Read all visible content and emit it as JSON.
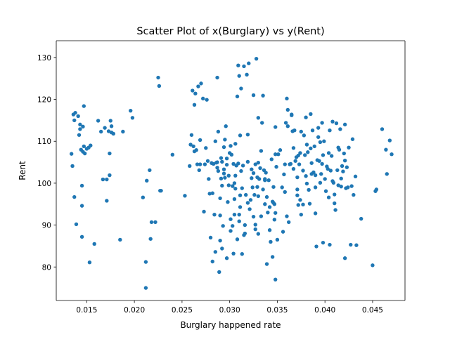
{
  "chart_data": {
    "type": "scatter",
    "title": "Scatter Plot of x(Burglary) vs y(Rent)",
    "xlabel": "Burglary happened rate",
    "ylabel": "Rent",
    "xlim": [
      0.0118,
      0.0484
    ],
    "ylim": [
      72,
      134
    ],
    "xticks": [
      0.015,
      0.02,
      0.025,
      0.03,
      0.035,
      0.04,
      0.045
    ],
    "xtick_labels": [
      "0.015",
      "0.020",
      "0.025",
      "0.030",
      "0.035",
      "0.040",
      "0.045"
    ],
    "yticks": [
      80,
      90,
      100,
      110,
      120,
      130
    ],
    "ytick_labels": [
      "80",
      "90",
      "100",
      "110",
      "120",
      "130"
    ],
    "grid": false,
    "legend": "none",
    "marker_color": "#1f77b4",
    "points": [
      [
        0.0134,
        107.0
      ],
      [
        0.0135,
        104.1
      ],
      [
        0.0136,
        116.4
      ],
      [
        0.0137,
        115.0
      ],
      [
        0.0137,
        96.7
      ],
      [
        0.0138,
        116.8
      ],
      [
        0.0139,
        90.2
      ],
      [
        0.0141,
        116.0
      ],
      [
        0.0142,
        111.5
      ],
      [
        0.0143,
        114.0
      ],
      [
        0.0143,
        112.9
      ],
      [
        0.0144,
        108.0
      ],
      [
        0.0145,
        99.4
      ],
      [
        0.0145,
        94.6
      ],
      [
        0.0145,
        87.2
      ],
      [
        0.0146,
        113.5
      ],
      [
        0.0146,
        107.5
      ],
      [
        0.0147,
        118.4
      ],
      [
        0.0147,
        108.8
      ],
      [
        0.0148,
        107.1
      ],
      [
        0.015,
        108.2
      ],
      [
        0.0152,
        108.5
      ],
      [
        0.0153,
        81.1
      ],
      [
        0.0154,
        109.0
      ],
      [
        0.0158,
        85.5
      ],
      [
        0.0162,
        114.9
      ],
      [
        0.0165,
        112.3
      ],
      [
        0.0167,
        100.9
      ],
      [
        0.0169,
        113.2
      ],
      [
        0.0171,
        100.9
      ],
      [
        0.0171,
        95.8
      ],
      [
        0.0173,
        112.4
      ],
      [
        0.0174,
        107.1
      ],
      [
        0.0174,
        101.9
      ],
      [
        0.0175,
        114.9
      ],
      [
        0.0176,
        113.6
      ],
      [
        0.0176,
        112.1
      ],
      [
        0.0178,
        111.8
      ],
      [
        0.0185,
        86.5
      ],
      [
        0.0188,
        112.3
      ],
      [
        0.0196,
        117.3
      ],
      [
        0.0198,
        115.6
      ],
      [
        0.0209,
        96.6
      ],
      [
        0.0212,
        81.2
      ],
      [
        0.0212,
        75.0
      ],
      [
        0.0213,
        100.6
      ],
      [
        0.0216,
        103.1
      ],
      [
        0.0217,
        86.7
      ],
      [
        0.0218,
        90.7
      ],
      [
        0.0222,
        90.7
      ],
      [
        0.0225,
        125.2
      ],
      [
        0.0226,
        123.2
      ],
      [
        0.0227,
        98.2
      ],
      [
        0.0228,
        98.2
      ],
      [
        0.024,
        106.8
      ],
      [
        0.0253,
        97.0
      ],
      [
        0.0258,
        104.1
      ],
      [
        0.0259,
        109.2
      ],
      [
        0.026,
        111.5
      ],
      [
        0.0261,
        122.1
      ],
      [
        0.0262,
        108.8
      ],
      [
        0.0263,
        118.7
      ],
      [
        0.0263,
        107.6
      ],
      [
        0.0264,
        121.4
      ],
      [
        0.0265,
        107.9
      ],
      [
        0.0266,
        104.5
      ],
      [
        0.0267,
        123.1
      ],
      [
        0.0268,
        103.1
      ],
      [
        0.0269,
        110.3
      ],
      [
        0.0269,
        104.5
      ],
      [
        0.027,
        123.8
      ],
      [
        0.0272,
        120.2
      ],
      [
        0.0273,
        93.2
      ],
      [
        0.0274,
        104.5
      ],
      [
        0.0275,
        108.4
      ],
      [
        0.0276,
        119.9
      ],
      [
        0.0277,
        105.3
      ],
      [
        0.0278,
        101.0
      ],
      [
        0.0279,
        97.5
      ],
      [
        0.028,
        87.0
      ],
      [
        0.0281,
        104.8
      ],
      [
        0.0282,
        97.6
      ],
      [
        0.0282,
        81.3
      ],
      [
        0.0283,
        104.6
      ],
      [
        0.0284,
        92.5
      ],
      [
        0.0285,
        110.0
      ],
      [
        0.0285,
        83.6
      ],
      [
        0.0286,
        104.9
      ],
      [
        0.0287,
        105.0
      ],
      [
        0.0287,
        125.2
      ],
      [
        0.0287,
        103.7
      ],
      [
        0.0288,
        112.3
      ],
      [
        0.0288,
        102.9
      ],
      [
        0.0289,
        78.8
      ],
      [
        0.029,
        96.4
      ],
      [
        0.029,
        86.3
      ],
      [
        0.029,
        92.3
      ],
      [
        0.0291,
        101.1
      ],
      [
        0.0291,
        106.0
      ],
      [
        0.0292,
        99.4
      ],
      [
        0.0292,
        105.1
      ],
      [
        0.0292,
        84.4
      ],
      [
        0.0293,
        89.8
      ],
      [
        0.0294,
        103.3
      ],
      [
        0.0294,
        102.3
      ],
      [
        0.0294,
        108.6
      ],
      [
        0.0295,
        110.4
      ],
      [
        0.0295,
        101.3
      ],
      [
        0.0296,
        113.6
      ],
      [
        0.0297,
        82.1
      ],
      [
        0.0297,
        105.9
      ],
      [
        0.0297,
        104.4
      ],
      [
        0.0298,
        95.5
      ],
      [
        0.0299,
        101.8
      ],
      [
        0.0299,
        99.5
      ],
      [
        0.03,
        107.2
      ],
      [
        0.0301,
        91.4
      ],
      [
        0.0301,
        88.6
      ],
      [
        0.0301,
        108.9
      ],
      [
        0.0302,
        106.8
      ],
      [
        0.0303,
        89.8
      ],
      [
        0.0303,
        99.3
      ],
      [
        0.0304,
        104.6
      ],
      [
        0.0304,
        83.2
      ],
      [
        0.0305,
        92.5
      ],
      [
        0.0305,
        100.0
      ],
      [
        0.0305,
        96.2
      ],
      [
        0.0306,
        101.8
      ],
      [
        0.0306,
        109.4
      ],
      [
        0.0306,
        98.7
      ],
      [
        0.0307,
        104.2
      ],
      [
        0.0308,
        120.7
      ],
      [
        0.0308,
        86.6
      ],
      [
        0.0309,
        128.1
      ],
      [
        0.0309,
        104.7
      ],
      [
        0.031,
        125.6
      ],
      [
        0.031,
        92.5
      ],
      [
        0.031,
        90.9
      ],
      [
        0.0311,
        111.4
      ],
      [
        0.0311,
        97.1
      ],
      [
        0.0311,
        94.3
      ],
      [
        0.0312,
        122.6
      ],
      [
        0.0312,
        102.9
      ],
      [
        0.0313,
        83.1
      ],
      [
        0.0313,
        98.8
      ],
      [
        0.0314,
        104.2
      ],
      [
        0.0315,
        87.6
      ],
      [
        0.0315,
        127.9
      ],
      [
        0.0316,
        90.0
      ],
      [
        0.0316,
        88.0
      ],
      [
        0.0317,
        97.2
      ],
      [
        0.0318,
        125.9
      ],
      [
        0.0319,
        111.6
      ],
      [
        0.0319,
        105.1
      ],
      [
        0.0319,
        95.3
      ],
      [
        0.032,
        128.6
      ],
      [
        0.0321,
        93.8
      ],
      [
        0.0322,
        96.0
      ],
      [
        0.0323,
        103.3
      ],
      [
        0.0323,
        101.2
      ],
      [
        0.0324,
        99.0
      ],
      [
        0.0325,
        121.0
      ],
      [
        0.0325,
        102.4
      ],
      [
        0.0325,
        92.0
      ],
      [
        0.0326,
        97.2
      ],
      [
        0.0327,
        104.5
      ],
      [
        0.0327,
        90.1
      ],
      [
        0.0327,
        89.0
      ],
      [
        0.0328,
        129.7
      ],
      [
        0.0329,
        101.4
      ],
      [
        0.0329,
        99.1
      ],
      [
        0.033,
        87.9
      ],
      [
        0.033,
        104.9
      ],
      [
        0.033,
        115.6
      ],
      [
        0.033,
        96.9
      ],
      [
        0.0331,
        101.0
      ],
      [
        0.0332,
        103.6
      ],
      [
        0.0333,
        92.1
      ],
      [
        0.0333,
        107.7
      ],
      [
        0.0334,
        114.4
      ],
      [
        0.0335,
        120.9
      ],
      [
        0.0335,
        98.5
      ],
      [
        0.0336,
        103.1
      ],
      [
        0.0337,
        100.7
      ],
      [
        0.0337,
        101.0
      ],
      [
        0.0337,
        95.0
      ],
      [
        0.0338,
        102.5
      ],
      [
        0.0339,
        96.7
      ],
      [
        0.0339,
        80.7
      ],
      [
        0.034,
        93.0
      ],
      [
        0.0341,
        100.7
      ],
      [
        0.0342,
        94.3
      ],
      [
        0.0342,
        88.8
      ],
      [
        0.0343,
        86.0
      ],
      [
        0.0344,
        105.7
      ],
      [
        0.0345,
        82.4
      ],
      [
        0.0345,
        95.6
      ],
      [
        0.0346,
        99.1
      ],
      [
        0.0346,
        95.3
      ],
      [
        0.0347,
        91.3
      ],
      [
        0.0347,
        95.0
      ],
      [
        0.0348,
        92.9
      ],
      [
        0.0348,
        77.0
      ],
      [
        0.0348,
        113.4
      ],
      [
        0.0348,
        106.9
      ],
      [
        0.0349,
        103.9
      ],
      [
        0.035,
        86.5
      ],
      [
        0.0351,
        106.9
      ],
      [
        0.0353,
        107.9
      ],
      [
        0.0355,
        99.0
      ],
      [
        0.0356,
        88.4
      ],
      [
        0.0357,
        102.1
      ],
      [
        0.0358,
        97.9
      ],
      [
        0.0358,
        104.5
      ],
      [
        0.0359,
        114.4
      ],
      [
        0.036,
        92.1
      ],
      [
        0.036,
        120.2
      ],
      [
        0.0361,
        113.6
      ],
      [
        0.0361,
        117.5
      ],
      [
        0.0362,
        90.7
      ],
      [
        0.0363,
        104.5
      ],
      [
        0.0364,
        104.6
      ],
      [
        0.0365,
        116.2
      ],
      [
        0.0365,
        116.4
      ],
      [
        0.0366,
        112.4
      ],
      [
        0.0367,
        108.4
      ],
      [
        0.0367,
        103.4
      ],
      [
        0.0368,
        112.6
      ],
      [
        0.0369,
        105.3
      ],
      [
        0.037,
        106.2
      ],
      [
        0.0371,
        97.1
      ],
      [
        0.0371,
        101.4
      ],
      [
        0.0371,
        98.5
      ],
      [
        0.0372,
        106.6
      ],
      [
        0.0372,
        94.8
      ],
      [
        0.0373,
        104.5
      ],
      [
        0.0374,
        96.0
      ],
      [
        0.0374,
        107.2
      ],
      [
        0.0375,
        112.3
      ],
      [
        0.0375,
        92.5
      ],
      [
        0.0377,
        94.9
      ],
      [
        0.0377,
        103.0
      ],
      [
        0.0378,
        111.4
      ],
      [
        0.0379,
        106.7
      ],
      [
        0.038,
        101.7
      ],
      [
        0.038,
        115.7
      ],
      [
        0.0381,
        109.2
      ],
      [
        0.0381,
        99.9
      ],
      [
        0.0382,
        107.4
      ],
      [
        0.0383,
        98.4
      ],
      [
        0.0384,
        95.1
      ],
      [
        0.0385,
        108.3
      ],
      [
        0.0385,
        116.5
      ],
      [
        0.0386,
        104.8
      ],
      [
        0.0386,
        102.2
      ],
      [
        0.0387,
        112.6
      ],
      [
        0.0388,
        102.6
      ],
      [
        0.0389,
        108.8
      ],
      [
        0.039,
        99.0
      ],
      [
        0.039,
        101.9
      ],
      [
        0.039,
        92.8
      ],
      [
        0.0391,
        84.9
      ],
      [
        0.0392,
        105.5
      ],
      [
        0.0393,
        113.2
      ],
      [
        0.0393,
        111.0
      ],
      [
        0.0394,
        105.3
      ],
      [
        0.0395,
        109.8
      ],
      [
        0.0395,
        100.1
      ],
      [
        0.0396,
        102.2
      ],
      [
        0.0397,
        114.4
      ],
      [
        0.0397,
        104.6
      ],
      [
        0.0398,
        106.7
      ],
      [
        0.0398,
        85.8
      ],
      [
        0.0399,
        110.0
      ],
      [
        0.04,
        101.0
      ],
      [
        0.0401,
        98.1
      ],
      [
        0.0402,
        104.0
      ],
      [
        0.0403,
        103.4
      ],
      [
        0.0404,
        107.2
      ],
      [
        0.0404,
        96.6
      ],
      [
        0.0405,
        112.6
      ],
      [
        0.0405,
        85.3
      ],
      [
        0.0406,
        103.0
      ],
      [
        0.0407,
        106.5
      ],
      [
        0.0408,
        100.5
      ],
      [
        0.0408,
        114.7
      ],
      [
        0.0409,
        100.1
      ],
      [
        0.041,
        97.3
      ],
      [
        0.041,
        95.2
      ],
      [
        0.0411,
        93.6
      ],
      [
        0.0412,
        114.3
      ],
      [
        0.0413,
        103.1
      ],
      [
        0.0414,
        108.5
      ],
      [
        0.0414,
        99.5
      ],
      [
        0.0415,
        108.0
      ],
      [
        0.0416,
        112.9
      ],
      [
        0.0417,
        101.1
      ],
      [
        0.0417,
        99.2
      ],
      [
        0.0418,
        104.1
      ],
      [
        0.0419,
        102.8
      ],
      [
        0.042,
        107.1
      ],
      [
        0.0421,
        114.0
      ],
      [
        0.0421,
        105.4
      ],
      [
        0.0421,
        82.1
      ],
      [
        0.0422,
        98.8
      ],
      [
        0.0423,
        103.8
      ],
      [
        0.0424,
        99.0
      ],
      [
        0.0425,
        108.5
      ],
      [
        0.0427,
        85.3
      ],
      [
        0.0428,
        99.3
      ],
      [
        0.0429,
        110.5
      ],
      [
        0.043,
        97.2
      ],
      [
        0.0432,
        101.6
      ],
      [
        0.0433,
        85.2
      ],
      [
        0.0438,
        91.5
      ],
      [
        0.045,
        80.4
      ],
      [
        0.0453,
        98.1
      ],
      [
        0.0454,
        98.5
      ],
      [
        0.046,
        112.9
      ],
      [
        0.0464,
        108.0
      ],
      [
        0.0465,
        102.2
      ],
      [
        0.0468,
        110.2
      ],
      [
        0.047,
        106.9
      ]
    ]
  }
}
